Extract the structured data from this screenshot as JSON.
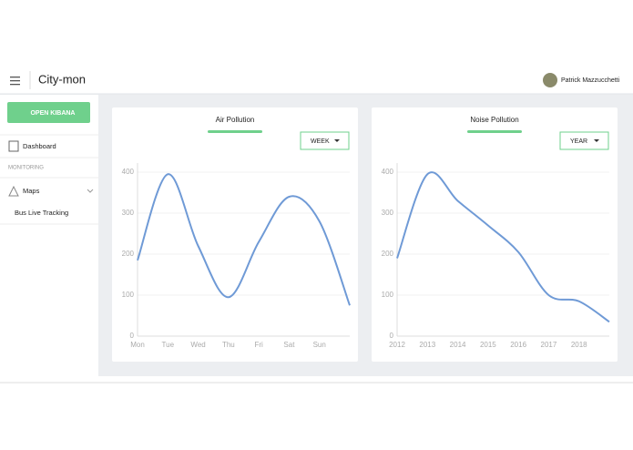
{
  "header": {
    "brand": "City-mon",
    "user": "Patrick Mazzucchetti"
  },
  "sidebar": {
    "button": "OPEN KIBANA",
    "dashboard": "Dashboard",
    "section": "MONITORING",
    "maps": "Maps",
    "tracking": "Bus Live Tracking"
  },
  "chart_data": [
    {
      "type": "line",
      "title": "Air Pollution",
      "dropdown": "WEEK",
      "categories": [
        "Mon",
        "Tue",
        "Wed",
        "Thu",
        "Fri",
        "Sat",
        "Sun",
        null
      ],
      "values": [
        185,
        395,
        220,
        95,
        230,
        340,
        280,
        75
      ],
      "color": "#6f9ad6",
      "ylim": [
        0,
        400
      ],
      "yticks": [
        0,
        100,
        200,
        300,
        400
      ],
      "grid": true
    },
    {
      "type": "line",
      "title": "Noise Pollution",
      "dropdown": "YEAR",
      "categories": [
        "2012",
        "2013",
        "2014",
        "2015",
        "2016",
        "2017",
        "2018",
        null
      ],
      "values": [
        190,
        395,
        330,
        270,
        205,
        100,
        85,
        35
      ],
      "color": "#6f9ad6",
      "ylim": [
        0,
        400
      ],
      "yticks": [
        0,
        100,
        200,
        300,
        400
      ],
      "grid": true
    }
  ]
}
